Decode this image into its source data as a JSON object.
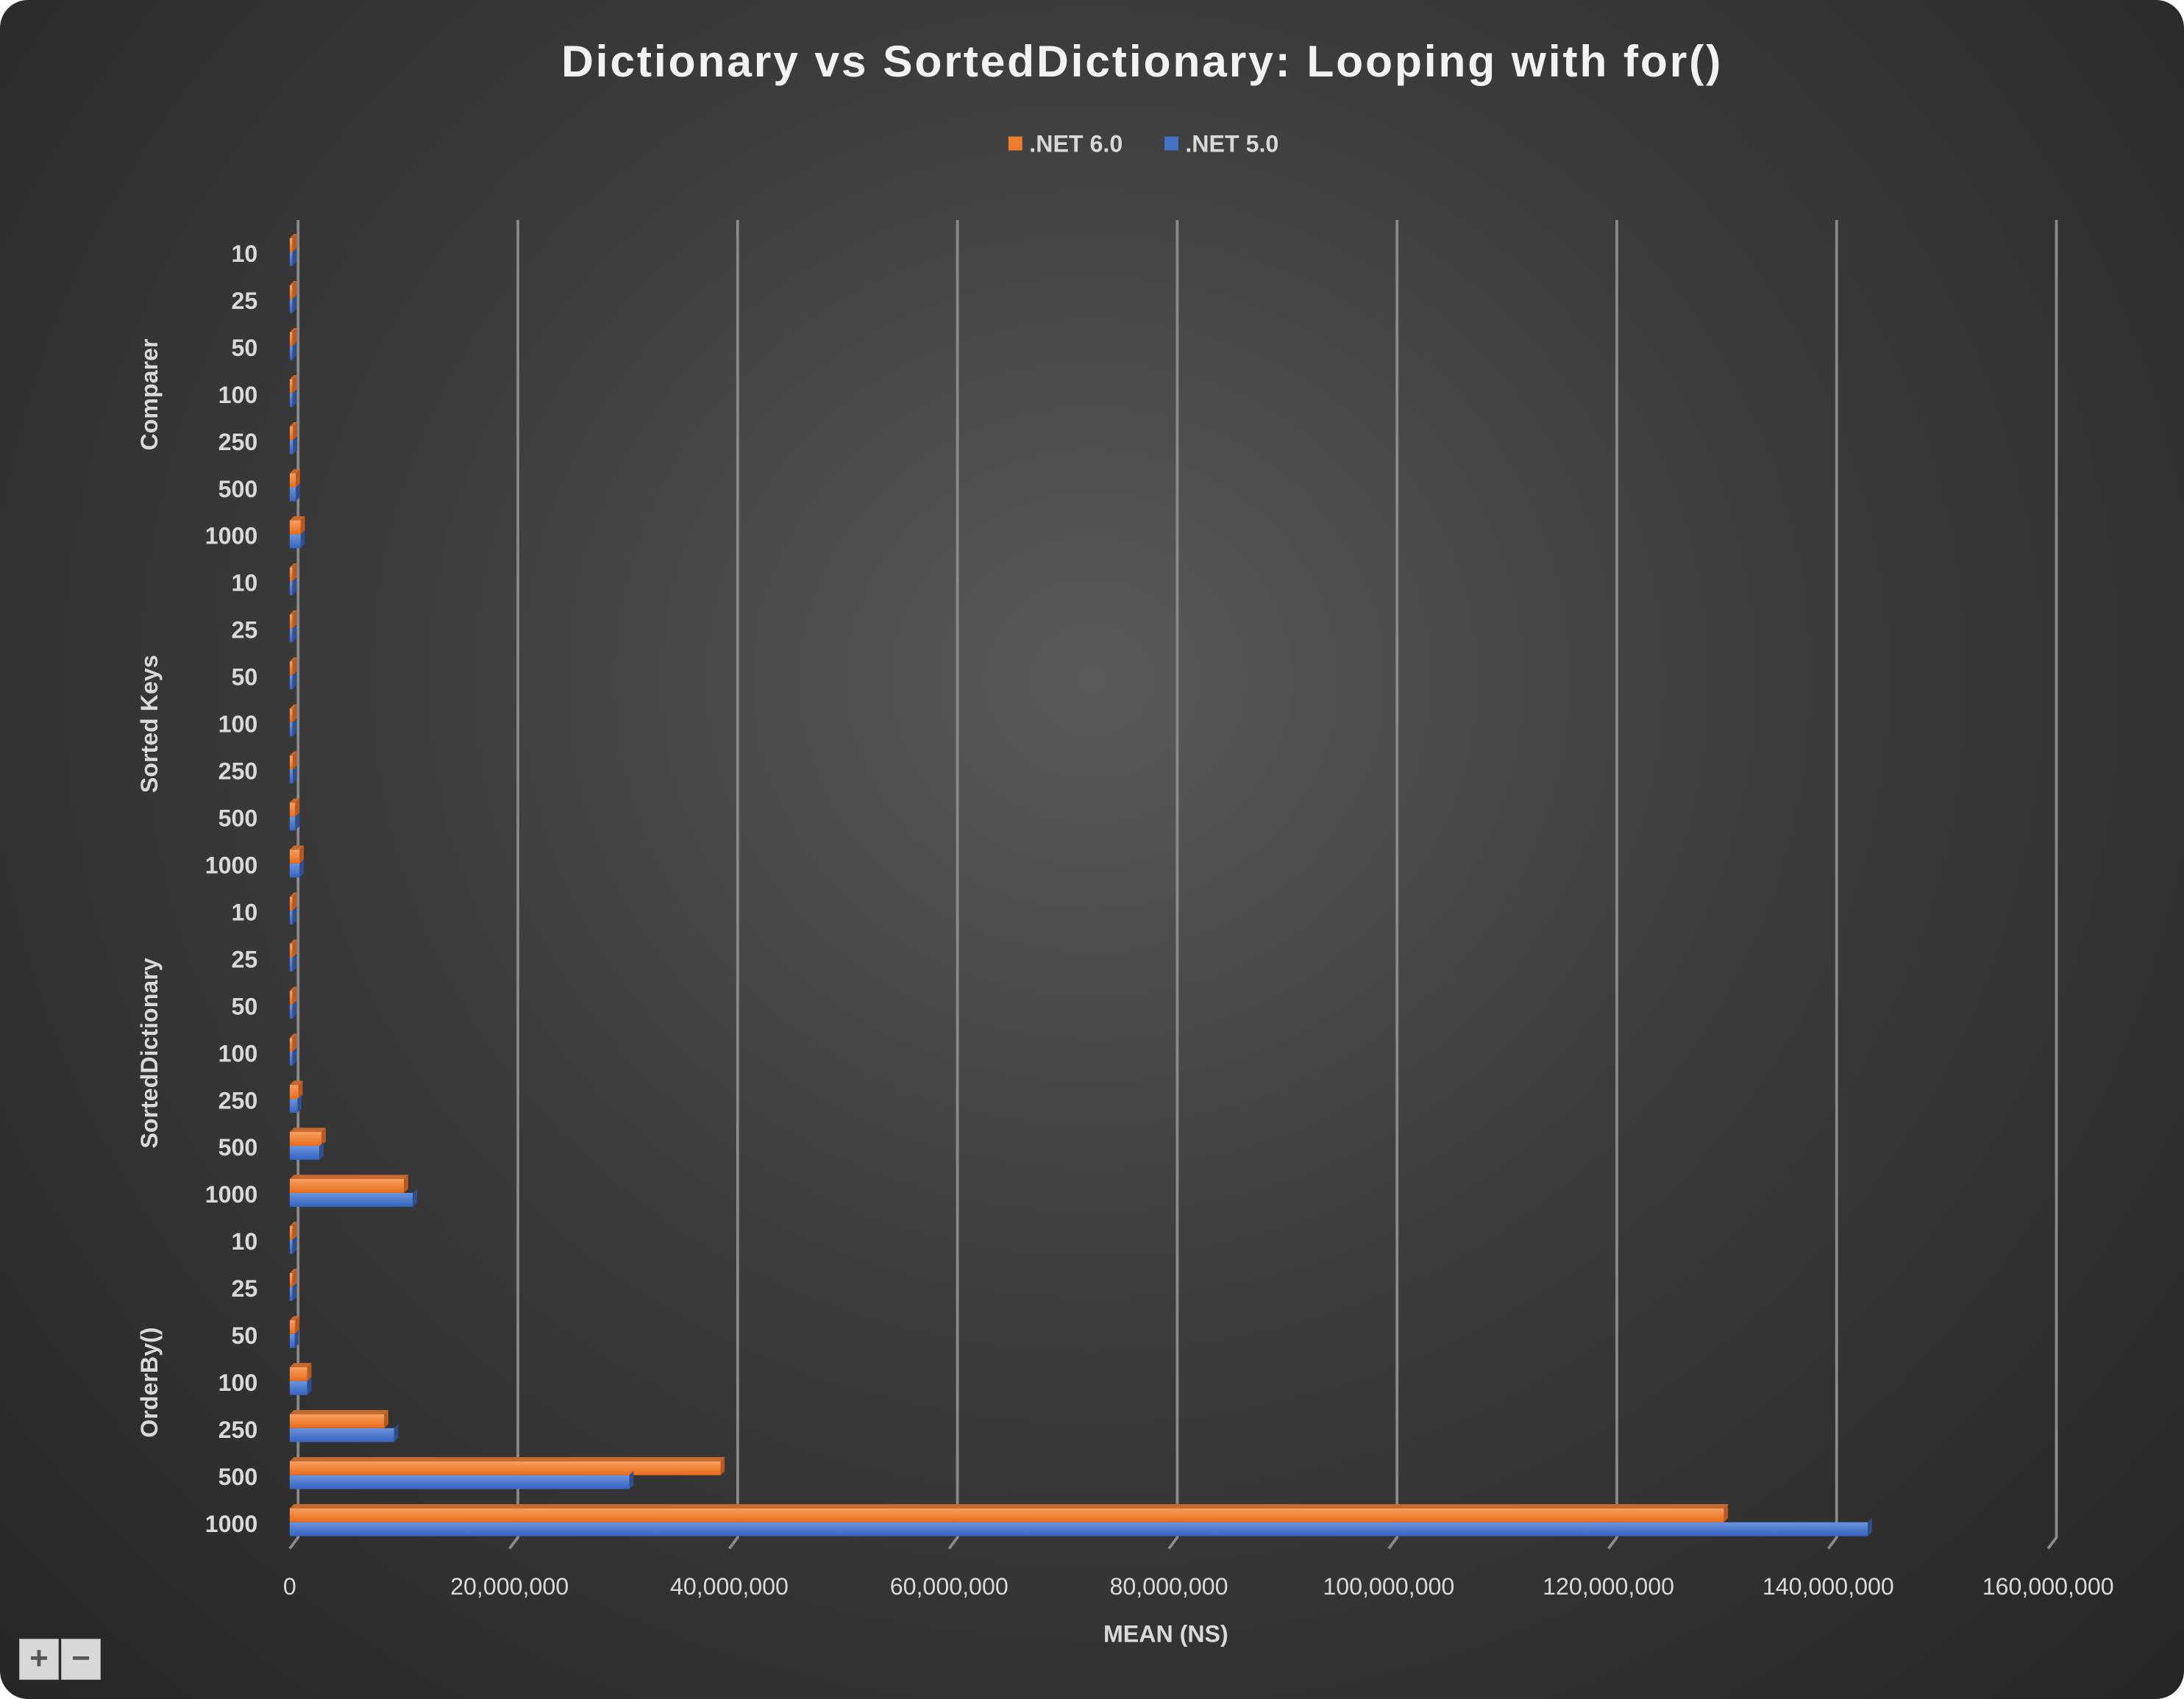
{
  "chart_data": {
    "type": "bar",
    "orientation": "horizontal",
    "title": "Dictionary vs SortedDictionary: Looping with for()",
    "xlabel": "MEAN (NS)",
    "ylabel": "",
    "xlim": [
      0,
      160000000
    ],
    "x_ticks": [
      "0",
      "20,000,000",
      "40,000,000",
      "60,000,000",
      "80,000,000",
      "100,000,000",
      "120,000,000",
      "140,000,000",
      "160,000,000"
    ],
    "grid": true,
    "legend_position": "top",
    "groups": [
      {
        "name": "Comparer",
        "categories": [
          "10",
          "25",
          "50",
          "100",
          "250",
          "500",
          "1000"
        ]
      },
      {
        "name": "Sorted Keys",
        "categories": [
          "10",
          "25",
          "50",
          "100",
          "250",
          "500",
          "1000"
        ]
      },
      {
        "name": "SortedDictionary",
        "categories": [
          "10",
          "25",
          "50",
          "100",
          "250",
          "500",
          "1000"
        ]
      },
      {
        "name": "OrderBy()",
        "categories": [
          "10",
          "25",
          "50",
          "100",
          "250",
          "500",
          "1000"
        ]
      }
    ],
    "series": [
      {
        "name": ".NET 6.0",
        "color": "#ED7D31",
        "values": [
          50000,
          80000,
          130000,
          200000,
          300000,
          550000,
          1000000,
          40000,
          70000,
          110000,
          180000,
          280000,
          500000,
          900000,
          40000,
          80000,
          130000,
          250000,
          800000,
          2900000,
          10400000,
          50000,
          120000,
          500000,
          1600000,
          8600000,
          39200000,
          130500000
        ]
      },
      {
        "name": ".NET 5.0",
        "color": "#4472C4",
        "values": [
          50000,
          80000,
          130000,
          200000,
          300000,
          550000,
          1000000,
          40000,
          70000,
          110000,
          180000,
          280000,
          500000,
          900000,
          40000,
          80000,
          130000,
          250000,
          700000,
          2700000,
          11200000,
          50000,
          120000,
          450000,
          1600000,
          9500000,
          30900000,
          143600000
        ]
      }
    ]
  },
  "zoom_controls": {
    "plus": "+",
    "minus": "−"
  }
}
